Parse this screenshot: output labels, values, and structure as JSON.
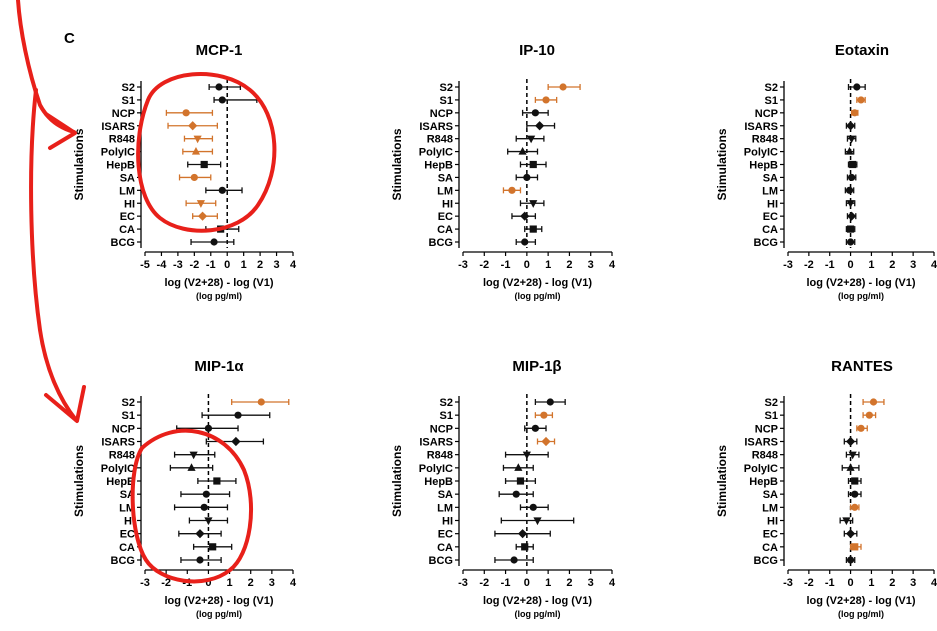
{
  "panel_letter": "C",
  "colors": {
    "significant": "#d2742c",
    "normal": "#111111",
    "annotation": "#e8201a"
  },
  "chart_data": [
    {
      "type": "forest",
      "title": "MCP-1",
      "xlabel": "log (V2+28) - log (V1)",
      "xunit": "(log pg/ml)",
      "ylabel": "Stimulations",
      "xlim": [
        -5,
        4
      ],
      "xticks": [
        -5,
        -4,
        -3,
        -2,
        -1,
        0,
        1,
        2,
        3,
        4
      ],
      "categories": [
        "S2",
        "S1",
        "NCP",
        "ISARS",
        "R848",
        "PolyIC",
        "HepB",
        "SA",
        "LM",
        "HI",
        "EC",
        "CA",
        "BCG"
      ],
      "points": [
        {
          "label": "S2",
          "value": -0.5,
          "low": -1.1,
          "high": 0.8,
          "marker": "circle",
          "sig": false
        },
        {
          "label": "S1",
          "value": -0.3,
          "low": -0.8,
          "high": 1.8,
          "marker": "circle",
          "sig": false
        },
        {
          "label": "NCP",
          "value": -2.5,
          "low": -3.7,
          "high": -0.9,
          "marker": "circle",
          "sig": true
        },
        {
          "label": "ISARS",
          "value": -2.1,
          "low": -3.6,
          "high": -0.6,
          "marker": "diamond",
          "sig": true
        },
        {
          "label": "R848",
          "value": -1.8,
          "low": -2.6,
          "high": -0.9,
          "marker": "triangle-down",
          "sig": true
        },
        {
          "label": "PolyIC",
          "value": -1.9,
          "low": -2.7,
          "high": -0.9,
          "marker": "triangle-up",
          "sig": true
        },
        {
          "label": "HepB",
          "value": -1.4,
          "low": -2.4,
          "high": -0.4,
          "marker": "square",
          "sig": false
        },
        {
          "label": "SA",
          "value": -2.0,
          "low": -2.9,
          "high": -1.0,
          "marker": "circle",
          "sig": true
        },
        {
          "label": "LM",
          "value": -0.3,
          "low": -1.3,
          "high": 0.9,
          "marker": "circle",
          "sig": false
        },
        {
          "label": "HI",
          "value": -1.6,
          "low": -2.5,
          "high": -0.7,
          "marker": "triangle-down",
          "sig": true
        },
        {
          "label": "EC",
          "value": -1.5,
          "low": -2.1,
          "high": -0.6,
          "marker": "diamond",
          "sig": true
        },
        {
          "label": "CA",
          "value": -0.4,
          "low": -1.3,
          "high": 0.7,
          "marker": "square",
          "sig": false
        },
        {
          "label": "BCG",
          "value": -0.8,
          "low": -2.2,
          "high": 0.4,
          "marker": "circle",
          "sig": false
        }
      ]
    },
    {
      "type": "forest",
      "title": "IP-10",
      "xlabel": "log (V2+28) - log (V1)",
      "xunit": "(log pg/ml)",
      "ylabel": "Stimulations",
      "xlim": [
        -3,
        4
      ],
      "xticks": [
        -3,
        -2,
        -1,
        0,
        1,
        2,
        3,
        4
      ],
      "categories": [
        "S2",
        "S1",
        "NCP",
        "ISARS",
        "R848",
        "PolyIC",
        "HepB",
        "SA",
        "LM",
        "HI",
        "EC",
        "CA",
        "BCG"
      ],
      "points": [
        {
          "label": "S2",
          "value": 1.7,
          "low": 1.0,
          "high": 2.5,
          "marker": "circle",
          "sig": true
        },
        {
          "label": "S1",
          "value": 0.9,
          "low": 0.4,
          "high": 1.4,
          "marker": "circle",
          "sig": true
        },
        {
          "label": "NCP",
          "value": 0.4,
          "low": -0.2,
          "high": 1.0,
          "marker": "circle",
          "sig": false
        },
        {
          "label": "ISARS",
          "value": 0.6,
          "low": 0.0,
          "high": 1.3,
          "marker": "diamond",
          "sig": false
        },
        {
          "label": "R848",
          "value": 0.2,
          "low": -0.5,
          "high": 0.8,
          "marker": "triangle-down",
          "sig": false
        },
        {
          "label": "PolyIC",
          "value": -0.2,
          "low": -0.9,
          "high": 0.5,
          "marker": "triangle-up",
          "sig": false
        },
        {
          "label": "HepB",
          "value": 0.3,
          "low": -0.3,
          "high": 0.9,
          "marker": "square",
          "sig": false
        },
        {
          "label": "SA",
          "value": 0.0,
          "low": -0.5,
          "high": 0.5,
          "marker": "circle",
          "sig": false
        },
        {
          "label": "LM",
          "value": -0.7,
          "low": -1.1,
          "high": -0.3,
          "marker": "circle",
          "sig": true
        },
        {
          "label": "HI",
          "value": 0.3,
          "low": -0.3,
          "high": 0.8,
          "marker": "triangle-down",
          "sig": false
        },
        {
          "label": "EC",
          "value": -0.1,
          "low": -0.7,
          "high": 0.4,
          "marker": "diamond",
          "sig": false
        },
        {
          "label": "CA",
          "value": 0.3,
          "low": -0.1,
          "high": 0.7,
          "marker": "square",
          "sig": false
        },
        {
          "label": "BCG",
          "value": -0.1,
          "low": -0.5,
          "high": 0.4,
          "marker": "circle",
          "sig": false
        }
      ]
    },
    {
      "type": "forest",
      "title": "Eotaxin",
      "xlabel": "log (V2+28) - log (V1)",
      "xunit": "(log pg/ml)",
      "ylabel": "Stimulations",
      "xlim": [
        -3,
        4
      ],
      "xticks": [
        -3,
        -2,
        -1,
        0,
        1,
        2,
        3,
        4
      ],
      "categories": [
        "S2",
        "S1",
        "NCP",
        "ISARS",
        "R848",
        "PolyIC",
        "HepB",
        "SA",
        "LM",
        "HI",
        "EC",
        "CA",
        "BCG"
      ],
      "points": [
        {
          "label": "S2",
          "value": 0.3,
          "low": -0.1,
          "high": 0.7,
          "marker": "circle",
          "sig": false
        },
        {
          "label": "S1",
          "value": 0.5,
          "low": 0.3,
          "high": 0.7,
          "marker": "circle",
          "sig": true
        },
        {
          "label": "NCP",
          "value": 0.2,
          "low": 0.05,
          "high": 0.35,
          "marker": "circle",
          "sig": true
        },
        {
          "label": "ISARS",
          "value": 0.0,
          "low": -0.2,
          "high": 0.2,
          "marker": "diamond",
          "sig": false
        },
        {
          "label": "R848",
          "value": 0.05,
          "low": -0.15,
          "high": 0.25,
          "marker": "triangle-down",
          "sig": false
        },
        {
          "label": "PolyIC",
          "value": -0.05,
          "low": -0.25,
          "high": 0.15,
          "marker": "triangle-up",
          "sig": false
        },
        {
          "label": "HepB",
          "value": 0.1,
          "low": -0.1,
          "high": 0.3,
          "marker": "square",
          "sig": false
        },
        {
          "label": "SA",
          "value": 0.05,
          "low": -0.15,
          "high": 0.25,
          "marker": "circle",
          "sig": false
        },
        {
          "label": "LM",
          "value": -0.05,
          "low": -0.25,
          "high": 0.15,
          "marker": "circle",
          "sig": false
        },
        {
          "label": "HI",
          "value": 0.0,
          "low": -0.2,
          "high": 0.2,
          "marker": "triangle-down",
          "sig": false
        },
        {
          "label": "EC",
          "value": 0.05,
          "low": -0.15,
          "high": 0.25,
          "marker": "diamond",
          "sig": false
        },
        {
          "label": "CA",
          "value": 0.0,
          "low": -0.2,
          "high": 0.2,
          "marker": "square",
          "sig": false
        },
        {
          "label": "BCG",
          "value": 0.0,
          "low": -0.2,
          "high": 0.2,
          "marker": "circle",
          "sig": false
        }
      ]
    },
    {
      "type": "forest",
      "title": "MIP-1α",
      "xlabel": "log (V2+28) - log (V1)",
      "xunit": "(log pg/ml)",
      "ylabel": "Stimulations",
      "xlim": [
        -3,
        4
      ],
      "xticks": [
        -3,
        -2,
        -1,
        0,
        1,
        2,
        3,
        4
      ],
      "categories": [
        "S2",
        "S1",
        "NCP",
        "ISARS",
        "R848",
        "PolyIC",
        "HepB",
        "SA",
        "LM",
        "HI",
        "EC",
        "CA",
        "BCG"
      ],
      "points": [
        {
          "label": "S2",
          "value": 2.5,
          "low": 1.1,
          "high": 3.8,
          "marker": "circle",
          "sig": true
        },
        {
          "label": "S1",
          "value": 1.4,
          "low": -0.3,
          "high": 2.9,
          "marker": "circle",
          "sig": false
        },
        {
          "label": "NCP",
          "value": 0.0,
          "low": -1.5,
          "high": 1.4,
          "marker": "circle",
          "sig": false
        },
        {
          "label": "ISARS",
          "value": 1.3,
          "low": -0.1,
          "high": 2.6,
          "marker": "diamond",
          "sig": false
        },
        {
          "label": "R848",
          "value": -0.7,
          "low": -1.6,
          "high": 0.3,
          "marker": "triangle-down",
          "sig": false
        },
        {
          "label": "PolyIC",
          "value": -0.8,
          "low": -1.8,
          "high": 0.2,
          "marker": "triangle-up",
          "sig": false
        },
        {
          "label": "HepB",
          "value": 0.4,
          "low": -0.5,
          "high": 1.3,
          "marker": "square",
          "sig": false
        },
        {
          "label": "SA",
          "value": -0.1,
          "low": -1.3,
          "high": 1.0,
          "marker": "circle",
          "sig": false
        },
        {
          "label": "LM",
          "value": -0.2,
          "low": -1.6,
          "high": 0.9,
          "marker": "circle",
          "sig": false
        },
        {
          "label": "HI",
          "value": 0.0,
          "low": -0.9,
          "high": 0.9,
          "marker": "triangle-down",
          "sig": false
        },
        {
          "label": "EC",
          "value": -0.4,
          "low": -1.4,
          "high": 0.6,
          "marker": "diamond",
          "sig": false
        },
        {
          "label": "CA",
          "value": 0.2,
          "low": -0.7,
          "high": 1.1,
          "marker": "square",
          "sig": false
        },
        {
          "label": "BCG",
          "value": -0.4,
          "low": -1.3,
          "high": 0.6,
          "marker": "circle",
          "sig": false
        }
      ]
    },
    {
      "type": "forest",
      "title": "MIP-1β",
      "xlabel": "log (V2+28) - log (V1)",
      "xunit": "(log pg/ml)",
      "ylabel": "Stimulations",
      "xlim": [
        -3,
        4
      ],
      "xticks": [
        -3,
        -2,
        -1,
        0,
        1,
        2,
        3,
        4
      ],
      "categories": [
        "S2",
        "S1",
        "NCP",
        "ISARS",
        "R848",
        "PolyIC",
        "HepB",
        "SA",
        "LM",
        "HI",
        "EC",
        "CA",
        "BCG"
      ],
      "points": [
        {
          "label": "S2",
          "value": 1.1,
          "low": 0.4,
          "high": 1.8,
          "marker": "circle",
          "sig": false
        },
        {
          "label": "S1",
          "value": 0.8,
          "low": 0.4,
          "high": 1.2,
          "marker": "circle",
          "sig": true
        },
        {
          "label": "NCP",
          "value": 0.4,
          "low": -0.1,
          "high": 0.9,
          "marker": "circle",
          "sig": false
        },
        {
          "label": "ISARS",
          "value": 0.9,
          "low": 0.5,
          "high": 1.3,
          "marker": "diamond",
          "sig": true
        },
        {
          "label": "R848",
          "value": 0.0,
          "low": -1.0,
          "high": 1.0,
          "marker": "triangle-down",
          "sig": false
        },
        {
          "label": "PolyIC",
          "value": -0.4,
          "low": -1.1,
          "high": 0.3,
          "marker": "triangle-up",
          "sig": false
        },
        {
          "label": "HepB",
          "value": -0.3,
          "low": -1.0,
          "high": 0.4,
          "marker": "square",
          "sig": false
        },
        {
          "label": "SA",
          "value": -0.5,
          "low": -1.3,
          "high": 0.3,
          "marker": "circle",
          "sig": false
        },
        {
          "label": "LM",
          "value": 0.3,
          "low": -0.3,
          "high": 1.0,
          "marker": "circle",
          "sig": false
        },
        {
          "label": "HI",
          "value": 0.5,
          "low": -1.2,
          "high": 2.2,
          "marker": "triangle-down",
          "sig": false
        },
        {
          "label": "EC",
          "value": -0.2,
          "low": -1.5,
          "high": 1.1,
          "marker": "diamond",
          "sig": false
        },
        {
          "label": "CA",
          "value": -0.1,
          "low": -0.5,
          "high": 0.3,
          "marker": "square",
          "sig": false
        },
        {
          "label": "BCG",
          "value": -0.6,
          "low": -1.5,
          "high": 0.3,
          "marker": "circle",
          "sig": false
        }
      ]
    },
    {
      "type": "forest",
      "title": "RANTES",
      "xlabel": "log (V2+28) - log (V1)",
      "xunit": "(log pg/ml)",
      "ylabel": "Stimulations",
      "xlim": [
        -3,
        4
      ],
      "xticks": [
        -3,
        -2,
        -1,
        0,
        1,
        2,
        3,
        4
      ],
      "categories": [
        "S2",
        "S1",
        "NCP",
        "ISARS",
        "R848",
        "PolyIC",
        "HepB",
        "SA",
        "LM",
        "HI",
        "EC",
        "CA",
        "BCG"
      ],
      "points": [
        {
          "label": "S2",
          "value": 1.1,
          "low": 0.6,
          "high": 1.6,
          "marker": "circle",
          "sig": true
        },
        {
          "label": "S1",
          "value": 0.9,
          "low": 0.6,
          "high": 1.2,
          "marker": "circle",
          "sig": true
        },
        {
          "label": "NCP",
          "value": 0.5,
          "low": 0.3,
          "high": 0.8,
          "marker": "circle",
          "sig": true
        },
        {
          "label": "ISARS",
          "value": 0.0,
          "low": -0.3,
          "high": 0.3,
          "marker": "diamond",
          "sig": false
        },
        {
          "label": "R848",
          "value": 0.1,
          "low": -0.2,
          "high": 0.4,
          "marker": "triangle-down",
          "sig": false
        },
        {
          "label": "PolyIC",
          "value": 0.0,
          "low": -0.4,
          "high": 0.4,
          "marker": "triangle-up",
          "sig": false
        },
        {
          "label": "HepB",
          "value": 0.2,
          "low": -0.1,
          "high": 0.5,
          "marker": "square",
          "sig": false
        },
        {
          "label": "SA",
          "value": 0.2,
          "low": -0.1,
          "high": 0.5,
          "marker": "circle",
          "sig": false
        },
        {
          "label": "LM",
          "value": 0.2,
          "low": 0.0,
          "high": 0.4,
          "marker": "circle",
          "sig": true
        },
        {
          "label": "HI",
          "value": -0.2,
          "low": -0.5,
          "high": 0.1,
          "marker": "triangle-down",
          "sig": false
        },
        {
          "label": "EC",
          "value": 0.0,
          "low": -0.3,
          "high": 0.3,
          "marker": "diamond",
          "sig": false
        },
        {
          "label": "CA",
          "value": 0.2,
          "low": 0.0,
          "high": 0.5,
          "marker": "square",
          "sig": true
        },
        {
          "label": "BCG",
          "value": 0.0,
          "low": -0.2,
          "high": 0.2,
          "marker": "circle",
          "sig": false
        }
      ]
    }
  ]
}
